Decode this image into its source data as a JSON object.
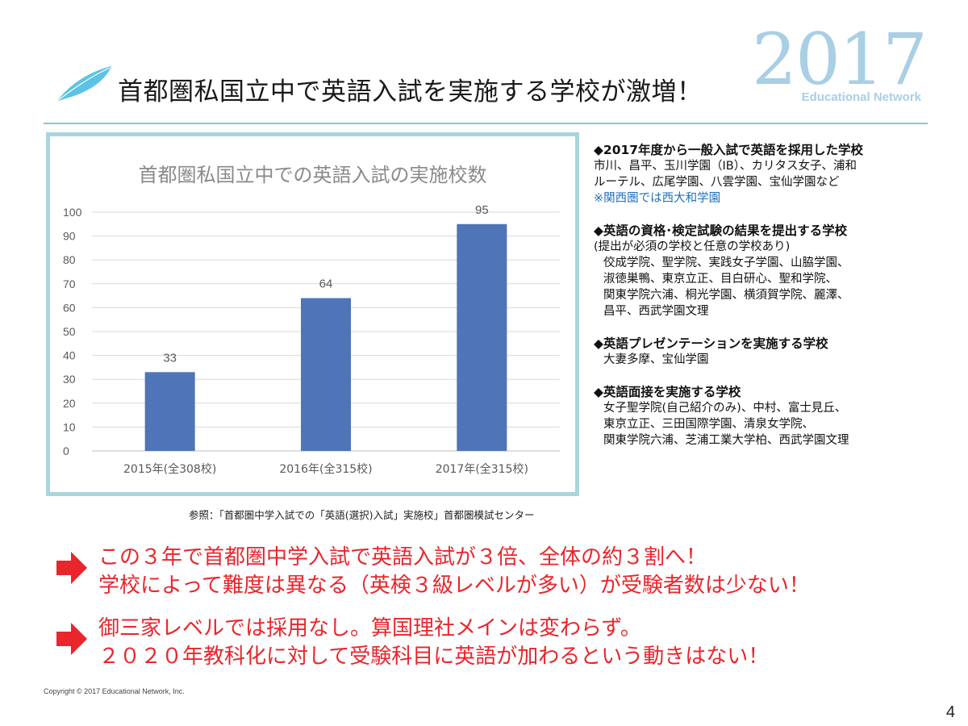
{
  "header": {
    "title": "首都圏私国立中で英語入試を実施する学校が激増！",
    "brand_year": "2017",
    "brand_name": "Educational Network"
  },
  "chart_data": {
    "type": "bar",
    "title": "首都圏私国立中での英語入試の実施校数",
    "categories": [
      "2015年(全308校)",
      "2016年(全315校)",
      "2017年(全315校)"
    ],
    "values": [
      33,
      64,
      95
    ],
    "ylim": [
      0,
      100
    ],
    "yticks": [
      0,
      10,
      20,
      30,
      40,
      50,
      60,
      70,
      80,
      90,
      100
    ],
    "xlabel": "",
    "ylabel": "",
    "grid": true,
    "bar_color": "#4f74b7"
  },
  "source": "参照：「首都圏中学入試での「英語(選択)入試」実施校」首都圏模試センター",
  "info_sections": [
    {
      "heading": "◆2017年度から一般入試で英語を採用した学校",
      "lines": [
        "市川、昌平、玉川学園（IB）、カリタス女子、浦和",
        "ルーテル、広尾学園、八雲学園、宝仙学園など"
      ],
      "note": "※関西圏では西大和学園"
    },
    {
      "heading": "◆英語の資格･検定試験の結果を提出する学校",
      "lines": [
        "(提出が必須の学校と任意の学校あり)",
        "佼成学院、聖学院、実践女子学園、山脇学園、",
        "淑徳巣鴨、東京立正、目白研心、聖和学院、",
        "関東学院六浦、桐光学園、横須賀学院、麗澤、",
        "昌平、西武学園文理"
      ]
    },
    {
      "heading": "◆英語プレゼンテーションを実施する学校",
      "lines": [
        "大妻多摩、宝仙学園"
      ]
    },
    {
      "heading": "◆英語面接を実施する学校",
      "lines": [
        "女子聖学院(自己紹介のみ)、中村、富士見丘、",
        "東京立正、三田国際学園、清泉女学院、",
        "関東学院六浦、芝浦工業大学柏、西武学園文理"
      ]
    }
  ],
  "messages": [
    [
      "この３年で首都圏中学入試で英語入試が３倍、全体の約３割へ！",
      "学校によって難度は異なる（英検３級レベルが多い）が受験者数は少ない！"
    ],
    [
      "御三家レベルでは採用なし。算国理社メインは変わらず。",
      "２０２０年教科化に対して受験科目に英語が加わるという動きはない！"
    ]
  ],
  "footer": {
    "copyright": "Copyright ©  2017  Educational Network, Inc.",
    "page_number": "4"
  },
  "colors": {
    "accent_red": "#e8262b",
    "feather_blue": "#5bc3e6",
    "note_blue": "#1f6fbf"
  }
}
